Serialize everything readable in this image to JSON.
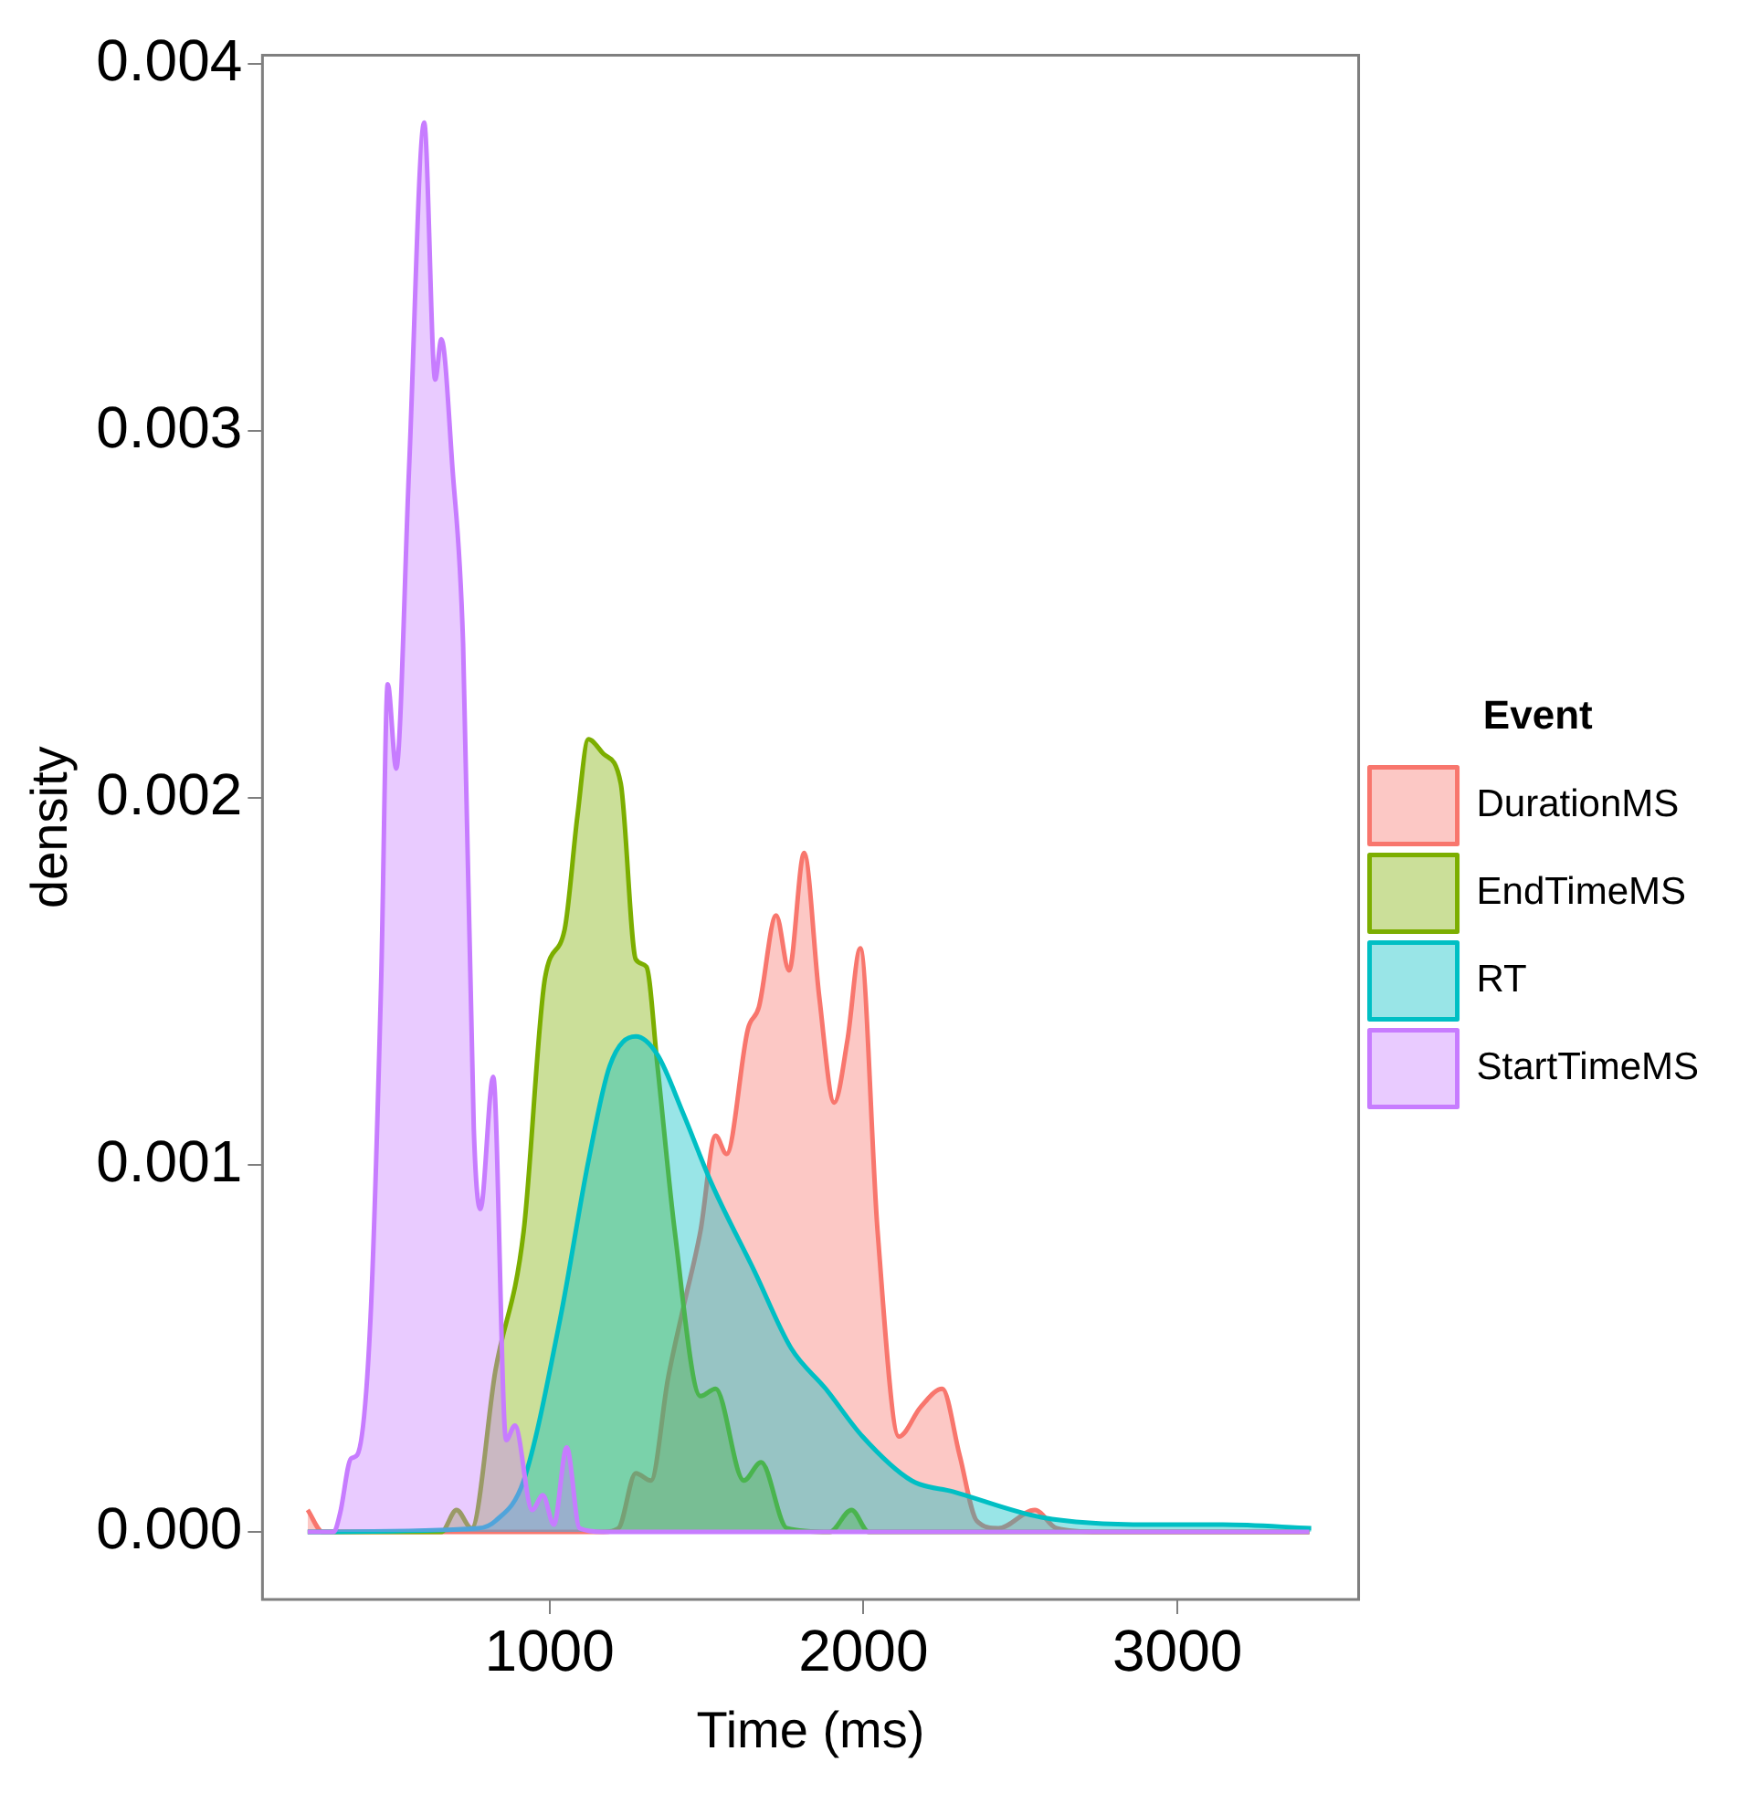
{
  "chart_data": {
    "type": "area",
    "xlabel": "Time (ms)",
    "ylabel": "density",
    "legend_title": "Event",
    "legend": "right",
    "grid": false,
    "xlim": [
      86,
      3577
    ],
    "ylim": [
      -0.000184,
      0.004024
    ],
    "xticks": [
      1000,
      2000,
      3000
    ],
    "yticks": [
      {
        "value": 0,
        "label": "0.000"
      },
      {
        "value": 0.001,
        "label": "0.001"
      },
      {
        "value": 0.002,
        "label": "0.002"
      },
      {
        "value": 0.003,
        "label": "0.003"
      },
      {
        "value": 0.004,
        "label": "0.004"
      }
    ],
    "series": [
      {
        "name": "DurationMS",
        "color": "#f8766d",
        "x": [
          230,
          278,
          1172,
          1220,
          1275,
          1323,
          1378,
          1426,
          1481,
          1529,
          1564,
          1632,
          1667,
          1722,
          1763,
          1811,
          1859,
          1907,
          1949,
          1990,
          2045,
          2113,
          2182,
          2251,
          2306,
          2361,
          2430,
          2546,
          2615,
          2752,
          3420
        ],
        "values": [
          6e-05,
          0,
          0,
          1e-05,
          0.00016,
          0.00014,
          0.00042,
          0.00061,
          0.00082,
          0.00108,
          0.00103,
          0.00137,
          0.00143,
          0.00168,
          0.00153,
          0.00185,
          0.00146,
          0.00117,
          0.00134,
          0.00159,
          0.00082,
          0.00026,
          0.00034,
          0.00039,
          0.00021,
          3e-05,
          1e-05,
          6e-05,
          1e-05,
          0,
          0
        ]
      },
      {
        "name": "EndTimeMS",
        "color": "#7cae00",
        "x": [
          230,
          656,
          704,
          752,
          828,
          918,
          986,
          1048,
          1089,
          1124,
          1172,
          1227,
          1275,
          1309,
          1344,
          1399,
          1481,
          1529,
          1619,
          1674,
          1756,
          1893,
          1962,
          2017,
          3420
        ],
        "values": [
          0,
          0,
          6e-05,
          1e-05,
          0.00044,
          0.00082,
          0.00151,
          0.00164,
          0.00195,
          0.00216,
          0.00212,
          0.00204,
          0.00156,
          0.00154,
          0.00127,
          0.00082,
          0.00037,
          0.00039,
          0.00014,
          0.00019,
          1e-05,
          0,
          6e-05,
          0,
          0
        ]
      },
      {
        "name": "RT",
        "color": "#00bfc4",
        "x": [
          230,
          773,
          828,
          918,
          1034,
          1124,
          1192,
          1275,
          1344,
          1426,
          1516,
          1653,
          1770,
          1880,
          1997,
          2153,
          2285,
          2567,
          2910,
          3144,
          3426
        ],
        "values": [
          0,
          1e-05,
          3e-05,
          0.00014,
          0.00058,
          0.00101,
          0.00127,
          0.00135,
          0.0013,
          0.00114,
          0.00095,
          0.00071,
          0.0005,
          0.00039,
          0.00026,
          0.00014,
          0.00011,
          4e-05,
          2e-05,
          2e-05,
          1e-05
        ]
      },
      {
        "name": "StartTimeMS",
        "color": "#c77cff",
        "x": [
          230,
          313,
          333,
          368,
          388,
          430,
          464,
          485,
          512,
          553,
          601,
          636,
          656,
          691,
          725,
          759,
          780,
          821,
          862,
          890,
          945,
          979,
          1014,
          1055,
          1096,
          1172,
          3420
        ],
        "values": [
          0,
          0,
          5e-05,
          0.0002,
          0.00021,
          0.00058,
          0.0015,
          0.00231,
          0.00208,
          0.0029,
          0.00384,
          0.00314,
          0.00325,
          0.0029,
          0.00242,
          0.0011,
          0.00088,
          0.00124,
          0.00025,
          0.00029,
          6e-05,
          0.0001,
          2e-05,
          0.00023,
          1e-05,
          0,
          0
        ]
      }
    ]
  }
}
